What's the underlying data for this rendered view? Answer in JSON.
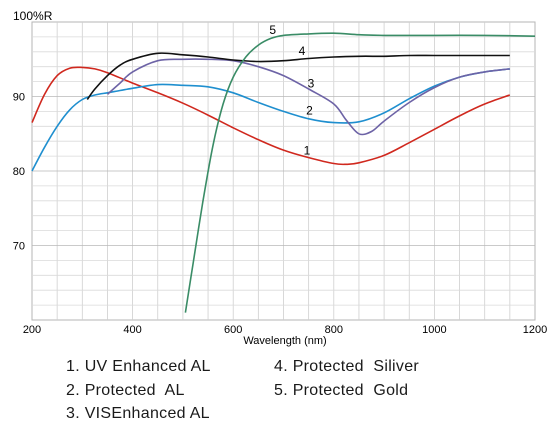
{
  "chart_data": {
    "type": "line",
    "ylabel": "100%R",
    "xlabel": "Wavelength (nm)",
    "xlim": [
      200,
      1200
    ],
    "ylim": [
      60,
      100
    ],
    "x_ticks": [
      "200",
      "400",
      "600",
      "800",
      "1000",
      "1200"
    ],
    "y_ticks": [
      "70",
      "80",
      "90"
    ],
    "grid": true,
    "series": [
      {
        "name": "1",
        "color": "#d0281e",
        "x": [
          200,
          225,
          250,
          275,
          300,
          325,
          350,
          400,
          450,
          500,
          550,
          600,
          650,
          700,
          750,
          800,
          825,
          850,
          900,
          950,
          1000,
          1050,
          1100,
          1150
        ],
        "y": [
          86.5,
          90.3,
          92.8,
          93.8,
          93.9,
          93.7,
          93.2,
          91.8,
          90.5,
          89.1,
          87.5,
          85.8,
          84.2,
          82.8,
          81.8,
          81.0,
          80.9,
          81.1,
          82.1,
          83.8,
          85.6,
          87.4,
          89.0,
          90.2
        ]
      },
      {
        "name": "2",
        "color": "#1f8fcf",
        "x": [
          200,
          225,
          250,
          275,
          300,
          325,
          350,
          375,
          400,
          450,
          500,
          550,
          600,
          650,
          700,
          750,
          800,
          850,
          900,
          950,
          1000,
          1050,
          1100,
          1150
        ],
        "y": [
          80.0,
          83.2,
          86.0,
          88.2,
          89.6,
          90.2,
          90.5,
          90.8,
          91.1,
          91.6,
          91.5,
          91.3,
          90.5,
          89.2,
          88.0,
          87.0,
          86.5,
          86.6,
          87.8,
          89.7,
          91.4,
          92.6,
          93.3,
          93.7
        ]
      },
      {
        "name": "3",
        "color": "#6d63a6",
        "x": [
          350,
          375,
          400,
          450,
          500,
          550,
          600,
          650,
          700,
          750,
          800,
          825,
          850,
          875,
          900,
          950,
          1000,
          1050,
          1100,
          1150
        ],
        "y": [
          90.3,
          91.8,
          93.3,
          94.8,
          95.0,
          95.0,
          94.8,
          94.0,
          92.8,
          91.0,
          89.0,
          86.8,
          85.0,
          85.3,
          86.7,
          89.2,
          91.2,
          92.6,
          93.3,
          93.7
        ]
      },
      {
        "name": "4",
        "color": "#111111",
        "x": [
          310,
          325,
          350,
          375,
          400,
          450,
          500,
          550,
          600,
          650,
          700,
          750,
          800,
          850,
          900,
          950,
          1000,
          1050,
          1100,
          1150
        ],
        "y": [
          89.6,
          91.0,
          92.8,
          94.2,
          95.0,
          95.8,
          95.6,
          95.3,
          94.9,
          94.7,
          94.8,
          95.1,
          95.3,
          95.4,
          95.4,
          95.5,
          95.5,
          95.5,
          95.5,
          95.5
        ]
      },
      {
        "name": "5",
        "color": "#3a8c66",
        "x": [
          505,
          520,
          540,
          560,
          580,
          600,
          625,
          650,
          675,
          700,
          750,
          800,
          850,
          900,
          1000,
          1100,
          1200
        ],
        "y": [
          61.0,
          67.5,
          76.0,
          83.5,
          89.0,
          92.6,
          95.3,
          96.9,
          97.8,
          98.2,
          98.4,
          98.5,
          98.3,
          98.2,
          98.2,
          98.2,
          98.1
        ]
      }
    ],
    "curve_labels": [
      {
        "text": "1",
        "x": 740,
        "y": 82.2
      },
      {
        "text": "2",
        "x": 745,
        "y": 87.6
      },
      {
        "text": "3",
        "x": 748,
        "y": 91.2
      },
      {
        "text": "4",
        "x": 730,
        "y": 95.6
      },
      {
        "text": "5",
        "x": 672,
        "y": 98.4
      }
    ]
  },
  "legend": {
    "item1": "1. UV Enhanced AL",
    "item2": "2. Protected  AL",
    "item3": "3. VISEnhanced AL",
    "item4": "4. Protected  Siliver",
    "item5": "5. Protected  Gold"
  }
}
